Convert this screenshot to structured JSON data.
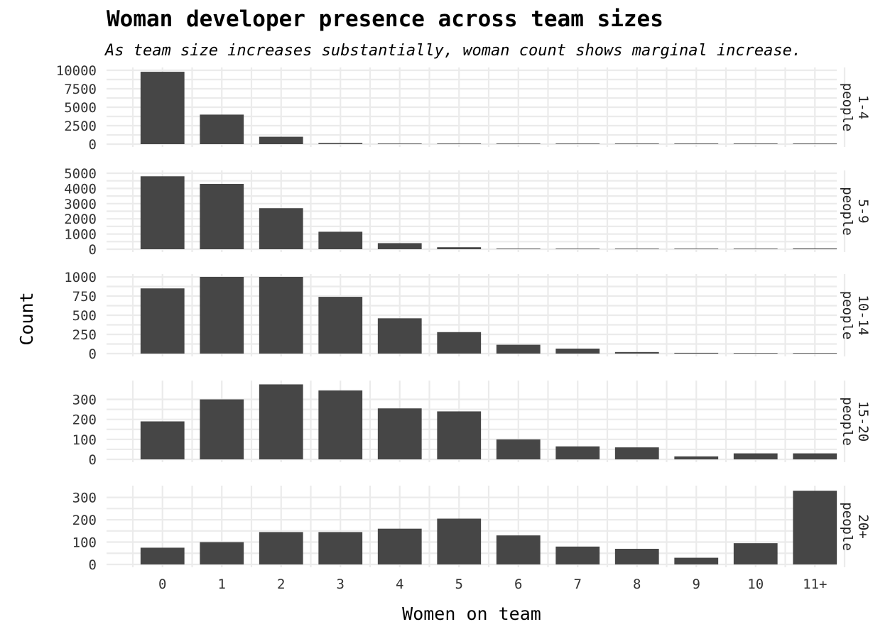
{
  "chart_data": {
    "type": "bar",
    "title": "Woman developer presence across team sizes",
    "subtitle": "As team size increases substantially, woman count shows marginal increase.",
    "xlabel": "Women on team",
    "ylabel": "Count",
    "categories": [
      "0",
      "1",
      "2",
      "3",
      "4",
      "5",
      "6",
      "7",
      "8",
      "9",
      "10",
      "11+"
    ],
    "grid": true,
    "legend": "none",
    "bar_color": "#464646",
    "grid_color": "#ebebeb",
    "panels": [
      {
        "name": "1-4\npeople",
        "ylim": [
          0,
          10000
        ],
        "yticks": [
          0,
          2500,
          5000,
          7500,
          10000
        ],
        "values": [
          9800,
          4000,
          1000,
          150,
          50,
          20,
          5,
          3,
          2,
          2,
          10,
          40
        ]
      },
      {
        "name": "5-9\npeople",
        "ylim": [
          0,
          5000
        ],
        "yticks": [
          0,
          1000,
          2000,
          3000,
          4000,
          5000
        ],
        "values": [
          4800,
          4300,
          2700,
          1150,
          400,
          130,
          40,
          15,
          8,
          5,
          20,
          50
        ]
      },
      {
        "name": "10-14\npeople",
        "ylim": [
          0,
          1000
        ],
        "yticks": [
          0,
          250,
          500,
          750,
          1000
        ],
        "values": [
          850,
          1010,
          1020,
          740,
          460,
          280,
          115,
          65,
          20,
          10,
          5,
          5
        ]
      },
      {
        "name": "15-20\npeople",
        "ylim": [
          0,
          380
        ],
        "yticks": [
          0,
          100,
          200,
          300
        ],
        "values": [
          190,
          300,
          375,
          345,
          255,
          240,
          100,
          65,
          60,
          15,
          30,
          30
        ]
      },
      {
        "name": "20+\npeople",
        "ylim": [
          0,
          340
        ],
        "yticks": [
          0,
          100,
          200,
          300
        ],
        "values": [
          75,
          100,
          145,
          145,
          160,
          205,
          130,
          80,
          70,
          30,
          95,
          330
        ]
      }
    ]
  }
}
